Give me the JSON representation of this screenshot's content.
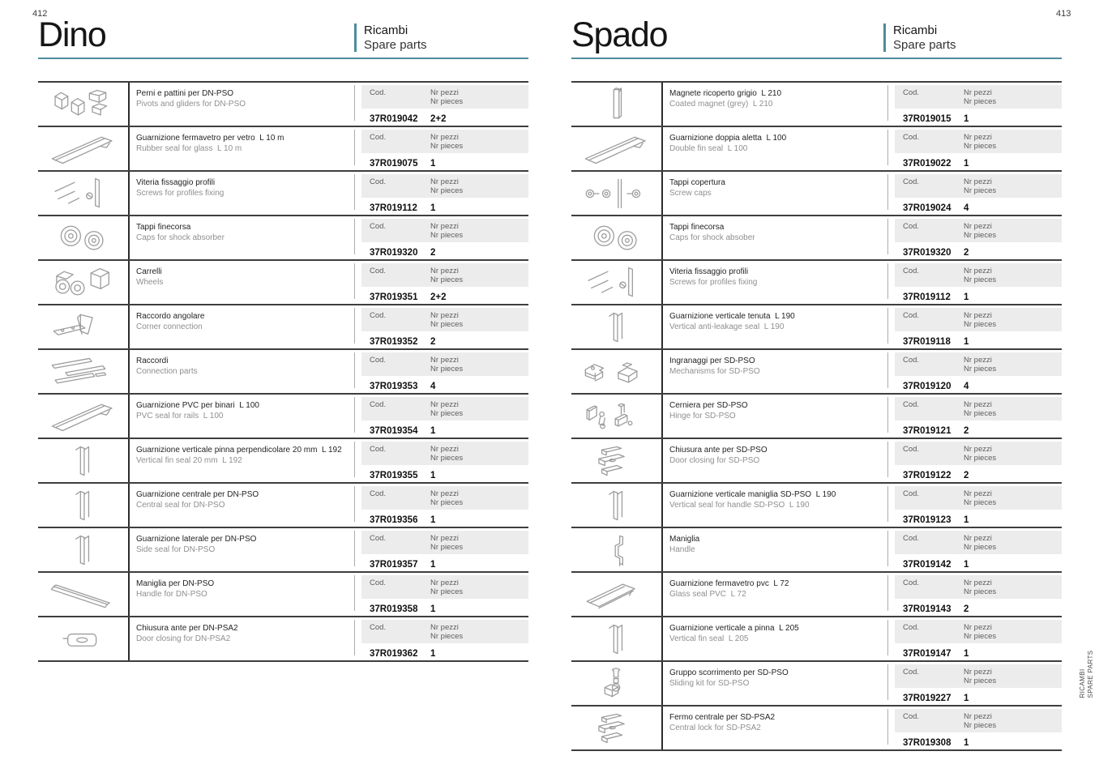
{
  "accent_color": "#4f8c9b",
  "side_tab": {
    "line1": "RICAMBI",
    "line2": "SPARE PARTS"
  },
  "pages": [
    {
      "page_number": "412",
      "title": "Dino",
      "section_label_it": "Ricambi",
      "section_label_en": "Spare parts",
      "col_code_label": "Cod.",
      "col_qty_label_it": "Nr pezzi",
      "col_qty_label_en": "Nr pieces",
      "rows": [
        {
          "name_it": "Perni e pattini per DN-PSO",
          "name_en": "Pivots and gliders for DN-PSO",
          "code": "37R019042",
          "qty": "2+2",
          "figure": "pivots-gliders"
        },
        {
          "name_it": "Guarnizione fermavetro per vetro  L 10 m",
          "name_en": "Rubber seal for glass  L 10 m",
          "code": "37R019075",
          "qty": "1",
          "figure": "diagonal-profile"
        },
        {
          "name_it": "Viteria fissaggio profili",
          "name_en": "Screws for profiles fixing",
          "code": "37R019112",
          "qty": "1",
          "figure": "panel-screw"
        },
        {
          "name_it": "Tappi finecorsa",
          "name_en": "Caps for shock absorber",
          "code": "37R019320",
          "qty": "2",
          "figure": "rollers"
        },
        {
          "name_it": "Carrelli",
          "name_en": "Wheels",
          "code": "37R019351",
          "qty": "2+2",
          "figure": "wheels"
        },
        {
          "name_it": "Raccordo angolare",
          "name_en": "Corner connection",
          "code": "37R019352",
          "qty": "2",
          "figure": "corner-bracket"
        },
        {
          "name_it": "Raccordi",
          "name_en": "Connection parts",
          "code": "37R019353",
          "qty": "4",
          "figure": "strips"
        },
        {
          "name_it": "Guarnizione PVC per binari  L 100",
          "name_en": "PVC seal for rails  L 100",
          "code": "37R019354",
          "qty": "1",
          "figure": "diagonal-profile"
        },
        {
          "name_it": "Guarnizione verticale pinna perpendicolare 20 mm  L 192",
          "name_en": "Vertical fin seal 20 mm  L 192",
          "code": "37R019355",
          "qty": "1",
          "figure": "vertical-profile"
        },
        {
          "name_it": "Guarnizione centrale per DN-PSO",
          "name_en": "Central seal for DN-PSO",
          "code": "37R019356",
          "qty": "1",
          "figure": "vertical-profile"
        },
        {
          "name_it": "Guarnizione laterale per DN-PSO",
          "name_en": "Side seal for DN-PSO",
          "code": "37R019357",
          "qty": "1",
          "figure": "vertical-profile"
        },
        {
          "name_it": "Maniglia per DN-PSO",
          "name_en": "Handle for DN-PSO",
          "code": "37R019358",
          "qty": "1",
          "figure": "rod"
        },
        {
          "name_it": "Chiusura ante per DN-PSA2",
          "name_en": "Door closing for DN-PSA2",
          "code": "37R019362",
          "qty": "1",
          "figure": "clip"
        }
      ]
    },
    {
      "page_number": "413",
      "title": "Spado",
      "section_label_it": "Ricambi",
      "section_label_en": "Spare parts",
      "col_code_label": "Cod.",
      "col_qty_label_it": "Nr pezzi",
      "col_qty_label_en": "Nr pieces",
      "rows": [
        {
          "name_it": "Magnete ricoperto grigio  L 210",
          "name_en": "Coated magnet (grey)  L 210",
          "code": "37R019015",
          "qty": "1",
          "figure": "vertical-bar"
        },
        {
          "name_it": "Guarnizione doppia aletta  L 100",
          "name_en": "Double fin seal  L 100",
          "code": "37R019022",
          "qty": "1",
          "figure": "diagonal-profile"
        },
        {
          "name_it": "Tappi copertura",
          "name_en": "Screw caps",
          "code": "37R019024",
          "qty": "4",
          "figure": "screw-caps"
        },
        {
          "name_it": "Tappi finecorsa",
          "name_en": "Caps for shock absober",
          "code": "37R019320",
          "qty": "2",
          "figure": "rollers"
        },
        {
          "name_it": "Viteria fissaggio profili",
          "name_en": "Screws for profiles fixing",
          "code": "37R019112",
          "qty": "1",
          "figure": "panel-screw"
        },
        {
          "name_it": "Guarnizione verticale tenuta  L 190",
          "name_en": "Vertical anti-leakage seal  L 190",
          "code": "37R019118",
          "qty": "1",
          "figure": "vertical-profile"
        },
        {
          "name_it": "Ingranaggi per SD-PSO",
          "name_en": "Mechanisms for SD-PSO",
          "code": "37R019120",
          "qty": "4",
          "figure": "mechanism-blocks"
        },
        {
          "name_it": "Cerniera per SD-PSO",
          "name_en": "Hinge for SD-PSO",
          "code": "37R019121",
          "qty": "2",
          "figure": "hinge-parts"
        },
        {
          "name_it": "Chiusura ante per SD-PSO",
          "name_en": "Door closing for SD-PSO",
          "code": "37R019122",
          "qty": "2",
          "figure": "latch-assembly"
        },
        {
          "name_it": "Guarnizione verticale maniglia SD-PSO  L 190",
          "name_en": "Vertical seal for handle SD-PSO  L 190",
          "code": "37R019123",
          "qty": "1",
          "figure": "vertical-profile"
        },
        {
          "name_it": "Maniglia",
          "name_en": "Handle",
          "code": "37R019142",
          "qty": "1",
          "figure": "handle"
        },
        {
          "name_it": "Guarnizione fermavetro pvc  L 72",
          "name_en": "Glass seal PVC  L 72",
          "code": "37R019143",
          "qty": "2",
          "figure": "u-channel"
        },
        {
          "name_it": "Guarnizione verticale a pinna  L 205",
          "name_en": "Vertical fin seal  L 205",
          "code": "37R019147",
          "qty": "1",
          "figure": "vertical-profile"
        },
        {
          "name_it": "Gruppo scorrimento per SD-PSO",
          "name_en": "Sliding kit for SD-PSO",
          "code": "37R019227",
          "qty": "1",
          "figure": "sliding-kit"
        },
        {
          "name_it": "Fermo centrale per SD-PSA2",
          "name_en": "Central lock for SD-PSA2",
          "code": "37R019308",
          "qty": "1",
          "figure": "latch-assembly"
        }
      ]
    }
  ]
}
